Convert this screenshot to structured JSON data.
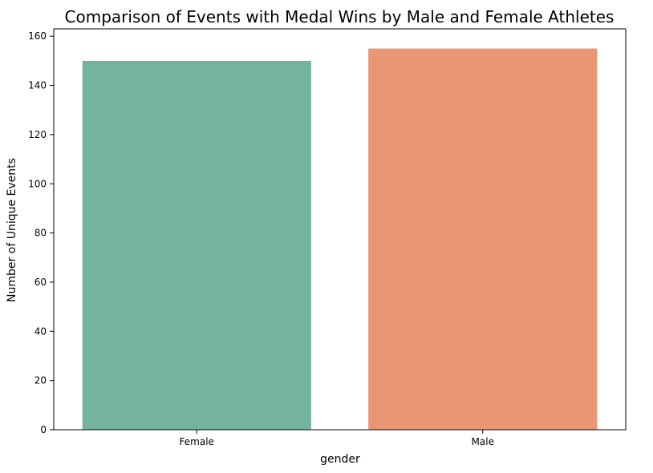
{
  "chart_data": {
    "type": "bar",
    "title": "Comparison of Events with Medal Wins by Male and Female Athletes",
    "xlabel": "gender",
    "ylabel": "Number of Unique Events",
    "categories": [
      "Female",
      "Male"
    ],
    "values": [
      150,
      155
    ],
    "colors": [
      "#73b3a0",
      "#e89674"
    ],
    "ylim": [
      0,
      163
    ],
    "yticks": [
      0,
      20,
      40,
      60,
      80,
      100,
      120,
      140,
      160
    ],
    "grid": false,
    "legend": "none"
  }
}
